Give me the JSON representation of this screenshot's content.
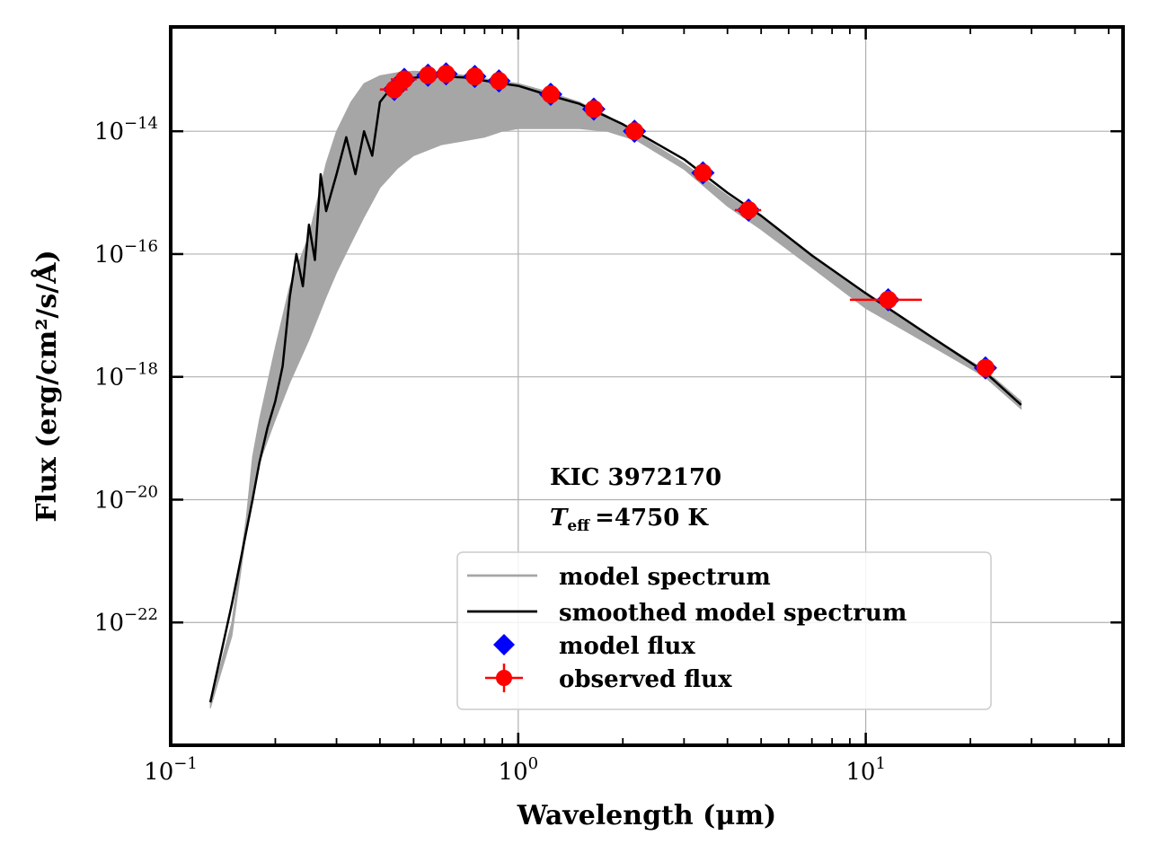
{
  "chart_data": {
    "type": "scatter",
    "title": "",
    "xlabel": "Wavelength (μm)",
    "ylabel": "Flux (erg/cm²/s/Å)",
    "xscale": "log",
    "yscale": "log",
    "xlim": [
      0.1,
      55
    ],
    "ylim": [
      1e-24,
      5e-13
    ],
    "grid": true,
    "legend_position": "lower-right",
    "x_ticks": [
      {
        "value": 0.1,
        "base": "10",
        "exp": "−1"
      },
      {
        "value": 1,
        "base": "10",
        "exp": "0"
      },
      {
        "value": 10,
        "base": "10",
        "exp": "1"
      }
    ],
    "y_ticks": [
      {
        "value": 1e-14,
        "base": "10",
        "exp": "−14"
      },
      {
        "value": 1e-16,
        "base": "10",
        "exp": "−16"
      },
      {
        "value": 1e-18,
        "base": "10",
        "exp": "−18"
      },
      {
        "value": 1e-20,
        "base": "10",
        "exp": "−20"
      },
      {
        "value": 1e-22,
        "base": "10",
        "exp": "−22"
      }
    ],
    "annotation": {
      "object": "KIC 3972170",
      "teff_symbol": "T",
      "teff_subscript": "eff",
      "teff_value": "=4750 K"
    },
    "legend": [
      {
        "label": "model spectrum",
        "style": "line",
        "color": "#a6a6a6"
      },
      {
        "label": "smoothed model spectrum",
        "style": "line",
        "color": "#000000"
      },
      {
        "label": "model flux",
        "style": "diamond",
        "color": "#0000ff"
      },
      {
        "label": "observed flux",
        "style": "errorpoint",
        "color": "#ff0000"
      }
    ],
    "series": [
      {
        "name": "model spectrum",
        "kind": "band",
        "color": "#a6a6a6",
        "x": [
          0.13,
          0.15,
          0.165,
          0.172,
          0.18,
          0.2,
          0.22,
          0.25,
          0.28,
          0.3,
          0.33,
          0.36,
          0.4,
          0.45,
          0.5,
          0.6,
          0.7,
          0.8,
          0.9,
          1.0,
          1.2,
          1.5,
          1.8,
          2.2,
          3.0,
          4.0,
          5.0,
          7.0,
          10.0,
          15.0,
          22.0,
          28.0
        ],
        "upper": [
          5e-24,
          1e-22,
          5e-21,
          5e-20,
          2e-19,
          3e-18,
          3e-17,
          2e-16,
          3e-15,
          1e-14,
          3e-14,
          6e-14,
          8e-14,
          9e-14,
          9.5e-14,
          9e-14,
          8.2e-14,
          7.2e-14,
          6.5e-14,
          6e-14,
          4.5e-14,
          3e-14,
          1.8e-14,
          9e-15,
          3e-15,
          9e-16,
          4e-16,
          9e-17,
          2.2e-17,
          5e-18,
          1.3e-18,
          4e-19
        ],
        "lower": [
          4e-24,
          6e-23,
          3e-21,
          1.2e-20,
          4e-20,
          2e-19,
          8e-19,
          4e-18,
          2e-17,
          5e-17,
          1.5e-16,
          4e-16,
          1.2e-15,
          2.5e-15,
          4e-15,
          6e-15,
          7e-15,
          8e-15,
          1e-14,
          1.1e-14,
          1.1e-14,
          1.1e-14,
          1e-14,
          7e-15,
          2.4e-15,
          6e-16,
          2.5e-16,
          6e-17,
          1.3e-17,
          3.5e-18,
          1e-18,
          3e-19
        ]
      },
      {
        "name": "smoothed model spectrum",
        "kind": "line",
        "color": "#000000",
        "x": [
          0.13,
          0.15,
          0.172,
          0.18,
          0.19,
          0.2,
          0.21,
          0.22,
          0.23,
          0.24,
          0.25,
          0.26,
          0.27,
          0.28,
          0.3,
          0.32,
          0.34,
          0.36,
          0.38,
          0.4,
          0.43,
          0.47,
          0.55,
          0.7,
          0.9,
          1.0,
          1.2,
          1.5,
          2.0,
          3.0,
          4.0,
          5.0,
          7.0,
          10.0,
          15.0,
          22.0,
          28.0
        ],
        "y": [
          5e-24,
          2e-22,
          1e-20,
          4e-20,
          1.5e-19,
          4e-19,
          1.5e-18,
          2e-17,
          1e-16,
          3e-17,
          3e-16,
          8e-17,
          2e-15,
          5e-16,
          2e-15,
          8e-15,
          2e-15,
          1e-14,
          4e-15,
          3e-14,
          5e-14,
          7e-14,
          8e-14,
          7.5e-14,
          6e-14,
          5.5e-14,
          4e-14,
          2.8e-14,
          1.3e-14,
          3.5e-15,
          1e-15,
          4.2e-16,
          9.5e-17,
          2.3e-17,
          5e-18,
          1.2e-18,
          3.5e-19
        ]
      },
      {
        "name": "model flux",
        "kind": "marker",
        "marker": "diamond",
        "color": "#0000ff",
        "x": [
          0.44,
          0.47,
          0.55,
          0.62,
          0.75,
          0.88,
          1.24,
          1.65,
          2.16,
          3.4,
          4.6,
          11.6,
          22.1
        ],
        "y": [
          4.8e-14,
          7e-14,
          8.2e-14,
          8.6e-14,
          7.8e-14,
          6.6e-14,
          4e-14,
          2.3e-14,
          1e-14,
          2.1e-15,
          5.2e-16,
          1.8e-17,
          1.4e-18
        ]
      },
      {
        "name": "observed flux",
        "kind": "errorpoint",
        "color": "#ff0000",
        "x": [
          0.44,
          0.47,
          0.55,
          0.62,
          0.75,
          0.88,
          1.24,
          1.65,
          2.16,
          3.4,
          4.6,
          11.6,
          22.1
        ],
        "y": [
          4.8e-14,
          7e-14,
          8.2e-14,
          8.6e-14,
          7.8e-14,
          6.6e-14,
          4e-14,
          2.3e-14,
          1e-14,
          2.1e-15,
          5.2e-16,
          1.8e-17,
          1.4e-18
        ],
        "xerr_low": [
          0.4,
          0.43,
          0.52,
          0.6,
          0.73,
          0.86,
          1.21,
          1.61,
          2.11,
          3.2,
          4.2,
          9.0,
          21.0
        ],
        "xerr_high": [
          0.48,
          0.51,
          0.58,
          0.65,
          0.78,
          0.91,
          1.28,
          1.7,
          2.22,
          3.6,
          5.0,
          14.5,
          23.5
        ]
      }
    ]
  }
}
